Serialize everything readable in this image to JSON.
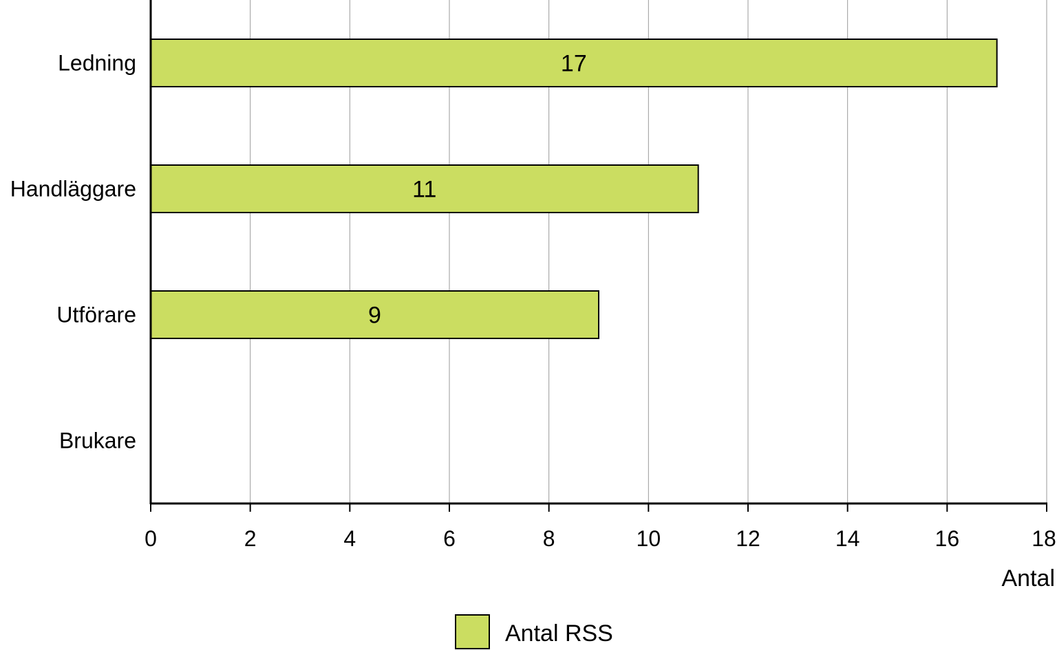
{
  "chart_data": {
    "type": "bar",
    "orientation": "horizontal",
    "categories": [
      "Ledning",
      "Handläggare",
      "Utförare",
      "Brukare"
    ],
    "series": [
      {
        "name": "Antal RSS",
        "values": [
          17,
          11,
          9,
          0
        ],
        "color": "#cbdd61"
      }
    ],
    "data_labels": [
      "17",
      "11",
      "9",
      ""
    ],
    "xlabel": "Antal",
    "ylabel": "",
    "xlim": [
      0,
      18
    ],
    "xticks": [
      0,
      2,
      4,
      6,
      8,
      10,
      12,
      14,
      16,
      18
    ],
    "grid": "vertical",
    "legend": "bottom-center"
  }
}
